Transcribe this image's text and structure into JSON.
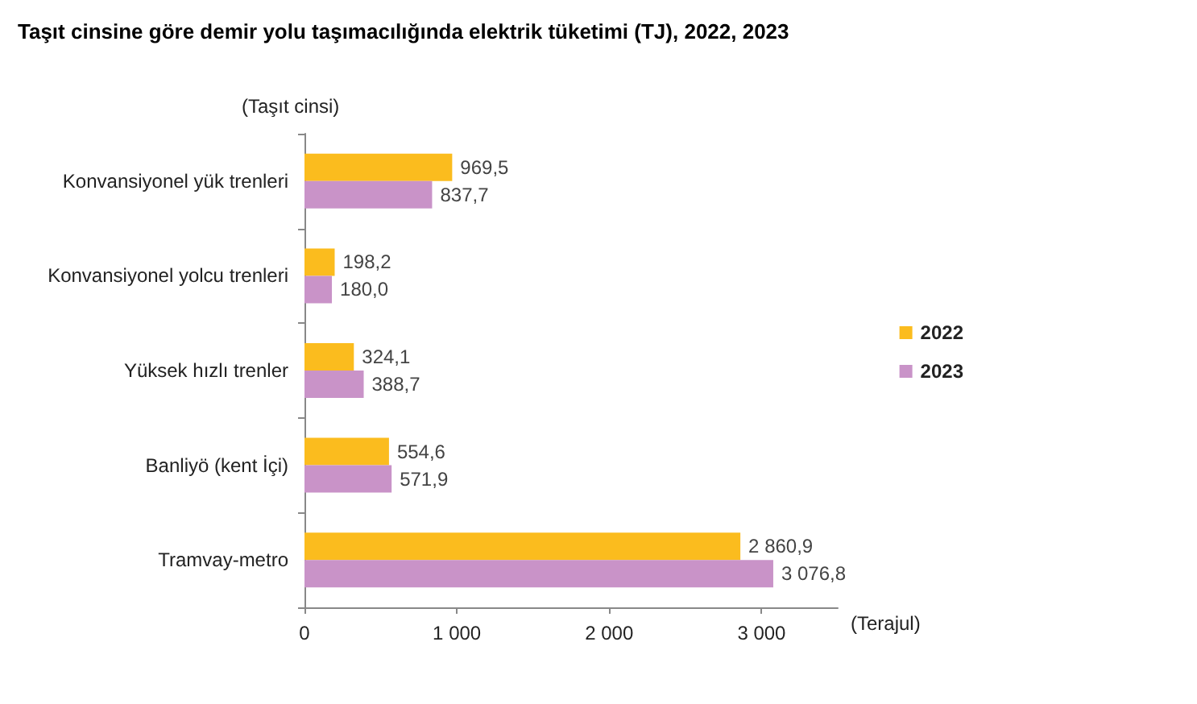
{
  "chart_data": {
    "type": "bar",
    "orientation": "horizontal",
    "title": "Taşıt cinsine göre demir yolu taşımacılığında elektrik tüketimi (TJ), 2022, 2023",
    "ylabel": "(Taşıt cinsi)",
    "xlabel": "(Terajul)",
    "categories": [
      "Konvansiyonel yük trenleri",
      "Konvansiyonel yolcu trenleri",
      "Yüksek hızlı trenler",
      "Banliyö (kent İçi)",
      "Tramvay-metro"
    ],
    "series": [
      {
        "name": "2022",
        "color": "#fbbc1e",
        "values": [
          969.5,
          198.2,
          324.1,
          554.6,
          2860.9
        ],
        "value_labels": [
          "969,5",
          "198,2",
          "324,1",
          "554,6",
          "2 860,9"
        ]
      },
      {
        "name": "2023",
        "color": "#c993c8",
        "values": [
          837.7,
          180.0,
          388.7,
          571.9,
          3076.8
        ],
        "value_labels": [
          "837,7",
          "180,0",
          "388,7",
          "571,9",
          "3 076,8"
        ]
      }
    ],
    "xlim": [
      0,
      3500
    ],
    "xticks": [
      0,
      {
        "value": 1000,
        "label": "1 000"
      },
      {
        "value": 2000,
        "label": "2 000"
      },
      {
        "value": 3000,
        "label": "3 000"
      }
    ],
    "grid": false,
    "legend": "right"
  }
}
